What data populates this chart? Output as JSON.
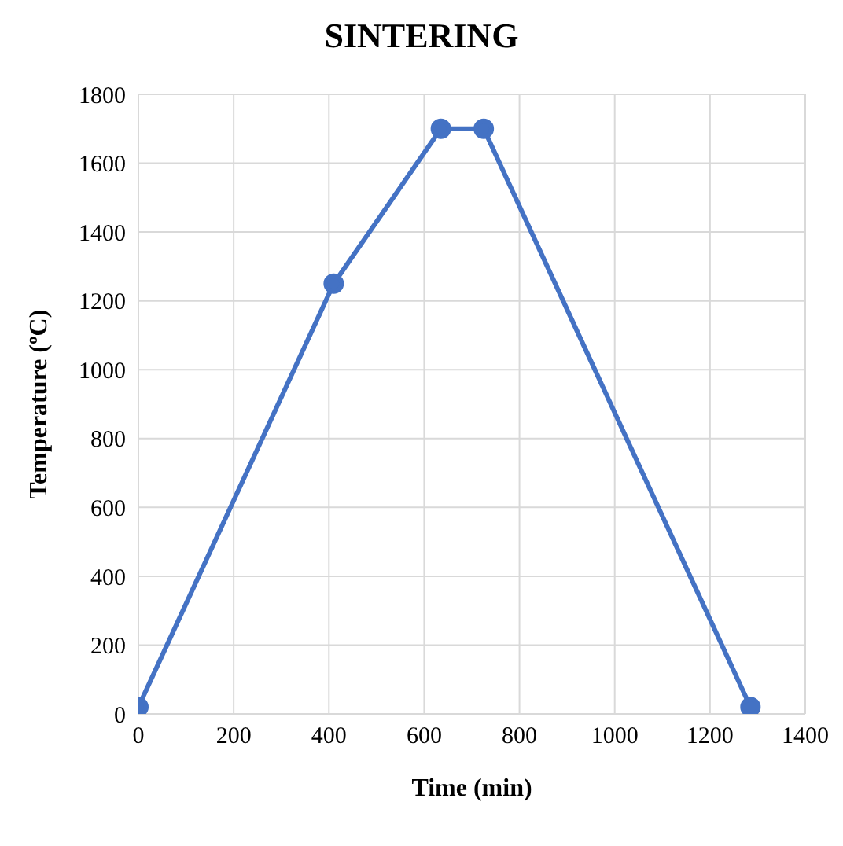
{
  "chart_data": {
    "type": "line",
    "title": "SINTERING",
    "xlabel": "Time (min)",
    "ylabel": "Temperature (ºC)",
    "x": [
      0,
      410,
      635,
      725,
      1285
    ],
    "series": [
      {
        "color": "#4472c4",
        "values": [
          20,
          1250,
          1700,
          1700,
          20
        ]
      }
    ],
    "xlim": [
      0,
      1400
    ],
    "xticks": [
      0,
      200,
      400,
      600,
      800,
      1000,
      1200,
      1400
    ],
    "ylim": [
      0,
      1800
    ],
    "yticks": [
      0,
      200,
      400,
      600,
      800,
      1000,
      1200,
      1400,
      1600,
      1800
    ],
    "grid": true,
    "marker": "circle",
    "line_style": "solid"
  }
}
